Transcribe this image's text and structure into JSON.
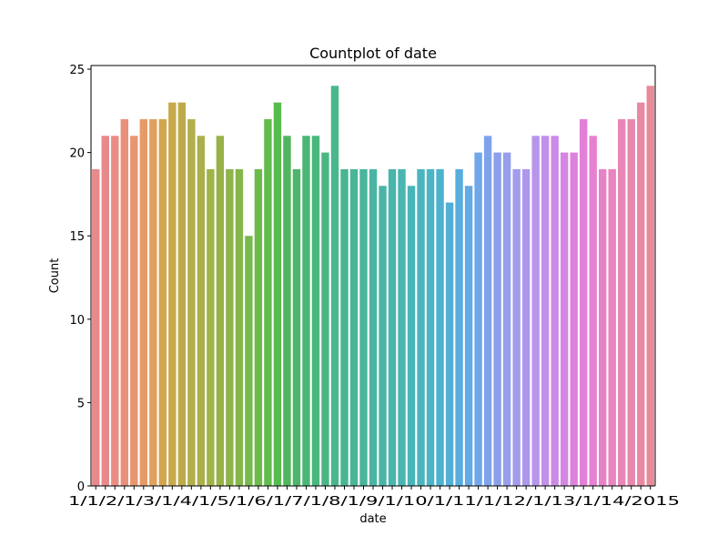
{
  "chart_data": {
    "type": "bar",
    "title": "Countplot of date",
    "xlabel": "date",
    "ylabel": "Count",
    "ylim": [
      0,
      25
    ],
    "yticks": [
      0,
      5,
      10,
      15,
      20,
      25
    ],
    "grid": false,
    "x_tick_text": "1/1/2/1/3/1/4/1/5/1/6/1/7/1/8/1/9/1/10/1/11/1/12/1/13/1/14/2015",
    "values": [
      19,
      21,
      21,
      22,
      21,
      22,
      22,
      22,
      23,
      23,
      22,
      21,
      19,
      21,
      19,
      19,
      15,
      19,
      22,
      23,
      21,
      19,
      21,
      21,
      20,
      24,
      19,
      19,
      19,
      19,
      18,
      19,
      19,
      18,
      19,
      19,
      19,
      17,
      19,
      18,
      20,
      21,
      20,
      20,
      19,
      19,
      21,
      21,
      21,
      20,
      20,
      22,
      21,
      19,
      19,
      22,
      22,
      23,
      24
    ],
    "colors": [
      "#e8898b",
      "#e8898a",
      "#e98d82",
      "#e8907a",
      "#e99670",
      "#e89a66",
      "#e0a05e",
      "#d3a54e",
      "#c8a94b",
      "#bdab4a",
      "#b4ae4b",
      "#a9b049",
      "#a1b249",
      "#98b249",
      "#8eb44a",
      "#84b64c",
      "#78b94e",
      "#6dba4c",
      "#62bb4c",
      "#57bc4e",
      "#4fb65d",
      "#4db66a",
      "#4bb674",
      "#4ab67d",
      "#4ab684",
      "#49b78b",
      "#4ab592",
      "#4ab597",
      "#4ab59d",
      "#4ab5a2",
      "#4ab5a7",
      "#4ab5ac",
      "#4ab5b2",
      "#4ab5b8",
      "#4ab5bf",
      "#4bb4c7",
      "#4db2ce",
      "#51b0d5",
      "#58adde",
      "#63a9e4",
      "#71a6e9",
      "#7ea3ea",
      "#8ba0ea",
      "#979eeb",
      "#a39bec",
      "#ae98ec",
      "#b895eb",
      "#c28fe9",
      "#cb8ae6",
      "#d486e2",
      "#dc82dd",
      "#e27fd7",
      "#e680d0",
      "#e882c8",
      "#e984c0",
      "#e986b8",
      "#e988ae",
      "#e889a3",
      "#e88a98"
    ]
  }
}
